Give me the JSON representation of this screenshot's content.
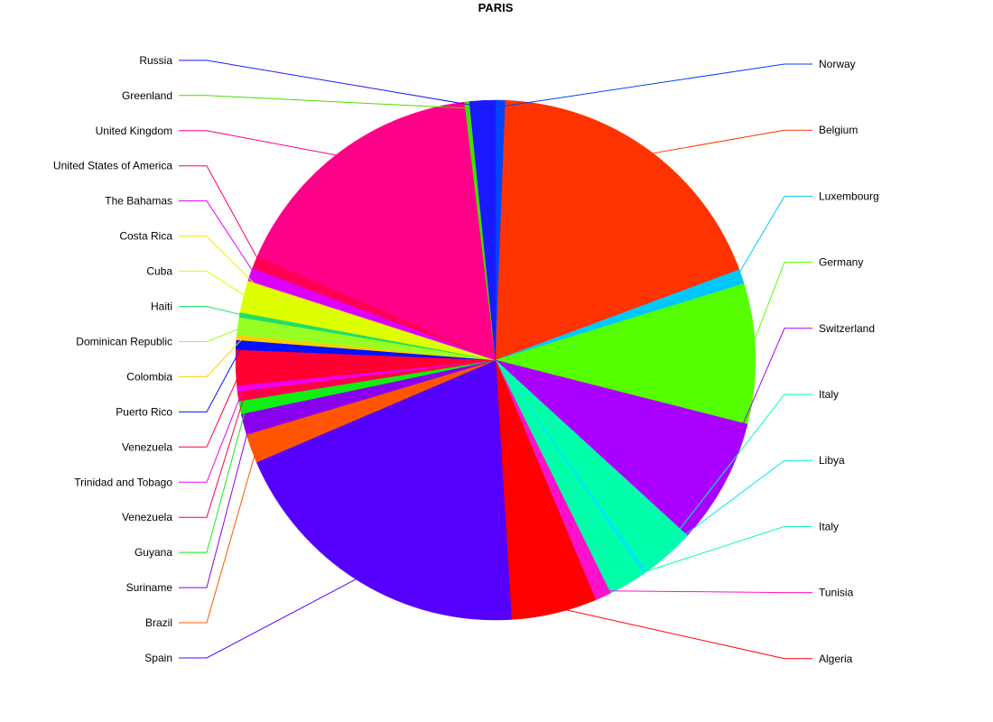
{
  "chart_data": {
    "type": "pie",
    "title": "PARIS",
    "slices": [
      {
        "label": "Norway",
        "value": 0.6,
        "color": "#0044FF",
        "side": "right"
      },
      {
        "label": "Belgium",
        "value": 18.7,
        "color": "#FF3300",
        "side": "right"
      },
      {
        "label": "Luxembourg",
        "value": 0.9,
        "color": "#00C8FF",
        "side": "right"
      },
      {
        "label": "Germany",
        "value": 8.7,
        "color": "#55FF00",
        "side": "right"
      },
      {
        "label": "Switzerland",
        "value": 7.8,
        "color": "#AA00FF",
        "side": "right"
      },
      {
        "label": "Italy",
        "value": 3.3,
        "color": "#00FFAA",
        "side": "right"
      },
      {
        "label": "Libya",
        "value": 0.3,
        "color": "#00E8E8",
        "side": "right"
      },
      {
        "label": "Italy",
        "value": 2.3,
        "color": "#00FFAA",
        "side": "right"
      },
      {
        "label": "Tunisia",
        "value": 1.0,
        "color": "#FF11CC",
        "side": "right"
      },
      {
        "label": "Algeria",
        "value": 5.3,
        "color": "#FF0000",
        "side": "right"
      },
      {
        "label": "Spain",
        "value": 19.5,
        "color": "#5500FF",
        "side": "left"
      },
      {
        "label": "Brazil",
        "value": 1.8,
        "color": "#FF5500",
        "side": "left"
      },
      {
        "label": "Suriname",
        "value": 1.3,
        "color": "#8800EE",
        "side": "left"
      },
      {
        "label": "Guyana",
        "value": 0.8,
        "color": "#11EE11",
        "side": "left"
      },
      {
        "label": "Venezuela",
        "value": 0.6,
        "color": "#FF0044",
        "side": "left"
      },
      {
        "label": "Trinidad and Tobago",
        "value": 0.35,
        "color": "#EE00EE",
        "side": "left"
      },
      {
        "label": "Venezuela",
        "value": 2.2,
        "color": "#FF0033",
        "side": "left"
      },
      {
        "label": "Puerto Rico",
        "value": 0.6,
        "color": "#0011FF",
        "side": "left"
      },
      {
        "label": "Colombia",
        "value": 0.3,
        "color": "#FFCC00",
        "side": "left"
      },
      {
        "label": "Dominican Republic",
        "value": 1.1,
        "color": "#99FF22",
        "side": "left"
      },
      {
        "label": "Haiti",
        "value": 0.3,
        "color": "#22DD66",
        "side": "left"
      },
      {
        "label": "Cuba",
        "value": 1.9,
        "color": "#DDFF00",
        "side": "left"
      },
      {
        "label": "Costa Rica",
        "value": 0.1,
        "color": "#EEEE00",
        "side": "left"
      },
      {
        "label": "The Bahamas",
        "value": 0.8,
        "color": "#DD00FF",
        "side": "left"
      },
      {
        "label": "United States of America",
        "value": 0.8,
        "color": "#FF0055",
        "side": "left"
      },
      {
        "label": "United Kingdom",
        "value": 16.5,
        "color": "#FF0088",
        "side": "left"
      },
      {
        "label": "Greenland",
        "value": 0.3,
        "color": "#44DD00",
        "side": "left"
      },
      {
        "label": "Russia",
        "value": 1.6,
        "color": "#1A1AFF",
        "side": "left"
      }
    ]
  }
}
